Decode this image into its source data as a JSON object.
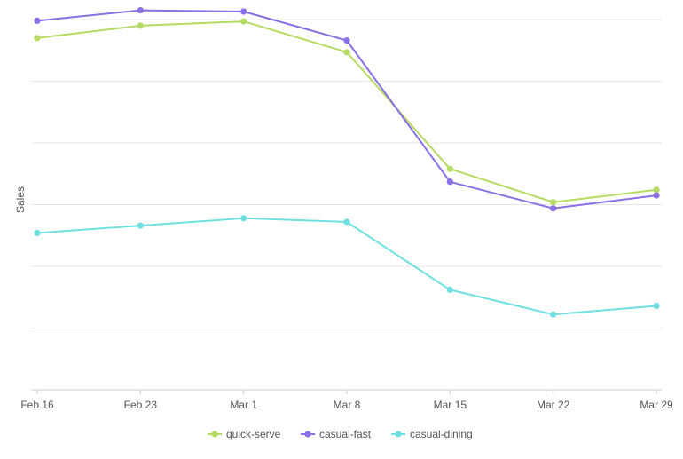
{
  "chart_data": {
    "type": "line",
    "title": "",
    "xlabel": "",
    "ylabel": "Sales",
    "categories": [
      "Feb 16",
      "Feb 23",
      "Mar 1",
      "Mar 8",
      "Mar 15",
      "Mar 22",
      "Mar 29"
    ],
    "ylim": [
      0,
      6
    ],
    "y_tick_labels_shown": false,
    "grid": true,
    "legend_position": "bottom",
    "series": [
      {
        "name": "quick-serve",
        "color": "#b5dc62",
        "values": [
          5.7,
          5.9,
          5.97,
          5.47,
          3.58,
          3.04,
          3.24
        ]
      },
      {
        "name": "casual-fast",
        "color": "#8b6fe6",
        "values": [
          5.98,
          6.15,
          6.13,
          5.66,
          3.37,
          2.94,
          3.15
        ]
      },
      {
        "name": "casual-dining",
        "color": "#6fdfe0",
        "values": [
          2.54,
          2.66,
          2.78,
          2.72,
          1.62,
          1.22,
          1.36
        ]
      }
    ]
  }
}
